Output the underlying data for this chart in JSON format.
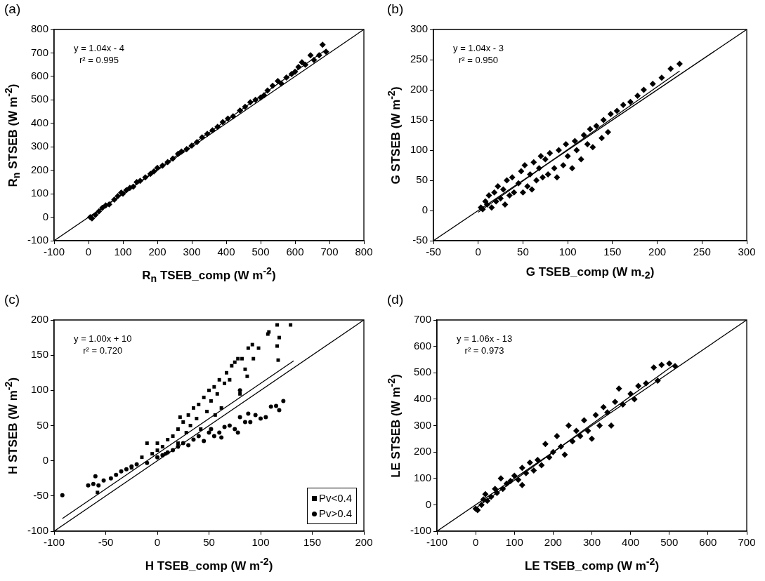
{
  "chart_data": [
    {
      "type": "scatter",
      "title": "(a)",
      "xlabel": "R$_{n}$ TSEB_comp (W m$^{-2}$)",
      "ylabel": "R$_{n}$ STSEB (W m$^{-2}$)",
      "xlim": [
        -100,
        800
      ],
      "ylim": [
        -100,
        800
      ],
      "xticks": [
        -100,
        0,
        100,
        200,
        300,
        400,
        500,
        600,
        700,
        800
      ],
      "yticks": [
        -100,
        0,
        100,
        200,
        300,
        400,
        500,
        600,
        700,
        800
      ],
      "grid": false,
      "legend": false,
      "marker": "diamond",
      "annotations": [
        "y = 1.04x - 4",
        "r² = 0.995"
      ],
      "series": [
        {
          "color": "#000000",
          "x": [
            5,
            10,
            20,
            30,
            40,
            50,
            60,
            75,
            85,
            95,
            100,
            110,
            120,
            130,
            140,
            150,
            165,
            180,
            190,
            200,
            215,
            230,
            245,
            260,
            270,
            285,
            300,
            315,
            330,
            345,
            360,
            375,
            390,
            405,
            420,
            440,
            455,
            470,
            485,
            500,
            510,
            520,
            535,
            550,
            560,
            575,
            590,
            600,
            610,
            620,
            630,
            645,
            655,
            670,
            680,
            690
          ],
          "values": [
            0,
            -5,
            10,
            25,
            40,
            50,
            55,
            75,
            90,
            105,
            100,
            115,
            125,
            130,
            150,
            155,
            170,
            185,
            195,
            210,
            220,
            235,
            250,
            270,
            280,
            290,
            305,
            320,
            340,
            355,
            370,
            385,
            405,
            420,
            430,
            455,
            470,
            490,
            500,
            510,
            520,
            540,
            560,
            580,
            570,
            595,
            610,
            620,
            640,
            660,
            650,
            690,
            670,
            690,
            735,
            705
          ]
        },
        {
          "type": "line",
          "color": "#000000",
          "marker": "none",
          "x": [
            -100,
            800
          ],
          "values": [
            -100,
            800
          ]
        },
        {
          "type": "line",
          "color": "#000000",
          "marker": "none",
          "x": [
            0,
            690
          ],
          "values": [
            -4,
            714
          ]
        }
      ]
    },
    {
      "type": "scatter",
      "title": "(b)",
      "xlabel": "G TSEB_comp (W m$_{-2}$)",
      "ylabel": "G STSEB (W m$^{-2}$)",
      "xlim": [
        -50,
        300
      ],
      "ylim": [
        -50,
        300
      ],
      "xticks": [
        -50,
        0,
        50,
        100,
        150,
        200,
        250,
        300
      ],
      "yticks": [
        -50,
        0,
        50,
        100,
        150,
        200,
        250,
        300
      ],
      "grid": false,
      "legend": false,
      "marker": "diamond",
      "annotations": [
        "y = 1.04x - 3",
        "r² = 0.950"
      ],
      "series": [
        {
          "color": "#000000",
          "x": [
            3,
            5,
            8,
            10,
            12,
            15,
            18,
            20,
            22,
            25,
            28,
            30,
            32,
            35,
            38,
            40,
            45,
            48,
            50,
            52,
            55,
            58,
            60,
            62,
            65,
            68,
            70,
            72,
            75,
            78,
            80,
            85,
            88,
            90,
            95,
            98,
            100,
            105,
            108,
            110,
            115,
            118,
            122,
            125,
            128,
            132,
            138,
            140,
            145,
            148,
            155,
            162,
            170,
            178,
            185,
            195,
            205,
            215,
            225
          ],
          "values": [
            5,
            2,
            15,
            10,
            25,
            5,
            30,
            15,
            40,
            20,
            35,
            10,
            50,
            25,
            55,
            30,
            45,
            65,
            30,
            75,
            40,
            60,
            35,
            80,
            50,
            70,
            90,
            55,
            85,
            60,
            95,
            70,
            55,
            100,
            75,
            110,
            90,
            70,
            115,
            100,
            85,
            125,
            110,
            135,
            105,
            140,
            120,
            150,
            130,
            160,
            165,
            175,
            180,
            190,
            200,
            210,
            220,
            235,
            243
          ]
        },
        {
          "type": "line",
          "color": "#000000",
          "marker": "none",
          "x": [
            -50,
            300
          ],
          "values": [
            -50,
            300
          ]
        },
        {
          "type": "line",
          "color": "#000000",
          "marker": "none",
          "x": [
            0,
            225
          ],
          "values": [
            -3,
            231
          ]
        }
      ]
    },
    {
      "type": "scatter",
      "title": "(c)",
      "xlabel": "H TSEB_comp (W m$^{-2}$)",
      "ylabel": "H STSEB (W m$^{-2}$)",
      "xlim": [
        -100,
        200
      ],
      "ylim": [
        -100,
        200
      ],
      "xticks": [
        -100,
        -50,
        0,
        50,
        100,
        150,
        200
      ],
      "yticks": [
        -100,
        -50,
        0,
        50,
        100,
        150,
        200
      ],
      "grid": false,
      "legend": "bottom right",
      "annotations": [
        "y = 1.00x + 10",
        "r² = 0.720"
      ],
      "series": [
        {
          "name": "Pv<0.4",
          "color": "#000000",
          "marker": "square",
          "x": [
            -58,
            -25,
            -15,
            -10,
            -5,
            0,
            0,
            5,
            8,
            10,
            15,
            20,
            20,
            22,
            25,
            28,
            30,
            32,
            35,
            38,
            40,
            42,
            45,
            48,
            50,
            52,
            55,
            56,
            58,
            60,
            62,
            65,
            67,
            70,
            72,
            75,
            78,
            80,
            82,
            85,
            87,
            88,
            92,
            93,
            98,
            107,
            108,
            116,
            116,
            117,
            118,
            129
          ],
          "values": [
            -45,
            -10,
            5,
            25,
            10,
            15,
            25,
            20,
            10,
            30,
            35,
            25,
            45,
            62,
            55,
            40,
            65,
            50,
            75,
            60,
            80,
            45,
            90,
            70,
            100,
            85,
            105,
            65,
            95,
            115,
            75,
            110,
            125,
            115,
            135,
            140,
            145,
            95,
            145,
            130,
            120,
            160,
            165,
            145,
            160,
            180,
            183,
            193,
            163,
            143,
            175,
            193
          ]
        },
        {
          "name": "Pv>0.4",
          "color": "#000000",
          "marker": "circle",
          "x": [
            -92,
            -67,
            -62,
            -60,
            -57,
            -52,
            -45,
            -40,
            -35,
            -30,
            -25,
            -20,
            -10,
            0,
            5,
            10,
            15,
            20,
            25,
            30,
            35,
            40,
            45,
            50,
            52,
            55,
            60,
            62,
            65,
            70,
            75,
            78,
            80,
            80,
            85,
            88,
            90,
            95,
            100,
            105,
            110,
            115,
            118,
            122
          ],
          "values": [
            -49,
            -35,
            -33,
            -22,
            -35,
            -28,
            -25,
            -20,
            -15,
            -12,
            -8,
            -5,
            -3,
            5,
            8,
            12,
            15,
            20,
            25,
            22,
            30,
            35,
            28,
            40,
            45,
            35,
            40,
            33,
            48,
            50,
            45,
            40,
            62,
            100,
            55,
            67,
            55,
            65,
            60,
            62,
            77,
            78,
            72,
            85
          ]
        },
        {
          "type": "line",
          "color": "#000000",
          "marker": "none",
          "x": [
            -100,
            200
          ],
          "values": [
            -100,
            200
          ]
        },
        {
          "type": "line",
          "color": "#000000",
          "marker": "none",
          "x": [
            -92,
            132
          ],
          "values": [
            -82,
            142
          ]
        }
      ]
    },
    {
      "type": "scatter",
      "title": "(d)",
      "xlabel": "LE TSEB_comp (W m$^{-2}$)",
      "ylabel": "LE STSEB (W m$^{-2}$)",
      "xlim": [
        -100,
        700
      ],
      "ylim": [
        -100,
        700
      ],
      "xticks": [
        -100,
        0,
        100,
        200,
        300,
        400,
        500,
        600,
        700
      ],
      "yticks": [
        -100,
        0,
        100,
        200,
        300,
        400,
        500,
        600,
        700
      ],
      "grid": false,
      "legend": false,
      "marker": "diamond",
      "annotations": [
        "y = 1.06x - 13",
        "r² = 0.973"
      ],
      "series": [
        {
          "color": "#000000",
          "x": [
            0,
            5,
            15,
            20,
            25,
            30,
            40,
            50,
            55,
            65,
            70,
            80,
            90,
            100,
            110,
            120,
            120,
            130,
            140,
            150,
            160,
            170,
            180,
            190,
            200,
            210,
            220,
            230,
            240,
            250,
            260,
            270,
            280,
            290,
            300,
            310,
            320,
            330,
            340,
            350,
            360,
            370,
            380,
            400,
            410,
            420,
            440,
            460,
            470,
            480,
            500,
            515
          ],
          "values": [
            -15,
            -20,
            0,
            20,
            40,
            15,
            30,
            60,
            45,
            100,
            60,
            80,
            90,
            110,
            95,
            75,
            140,
            120,
            160,
            130,
            170,
            150,
            230,
            180,
            200,
            260,
            220,
            190,
            300,
            240,
            280,
            260,
            320,
            280,
            250,
            340,
            300,
            370,
            350,
            300,
            390,
            440,
            380,
            420,
            400,
            450,
            460,
            520,
            470,
            530,
            535,
            525
          ]
        },
        {
          "type": "line",
          "color": "#000000",
          "marker": "none",
          "x": [
            -100,
            700
          ],
          "values": [
            -100,
            700
          ]
        },
        {
          "type": "line",
          "color": "#000000",
          "marker": "none",
          "x": [
            0,
            515
          ],
          "values": [
            -13,
            533
          ]
        }
      ]
    }
  ]
}
